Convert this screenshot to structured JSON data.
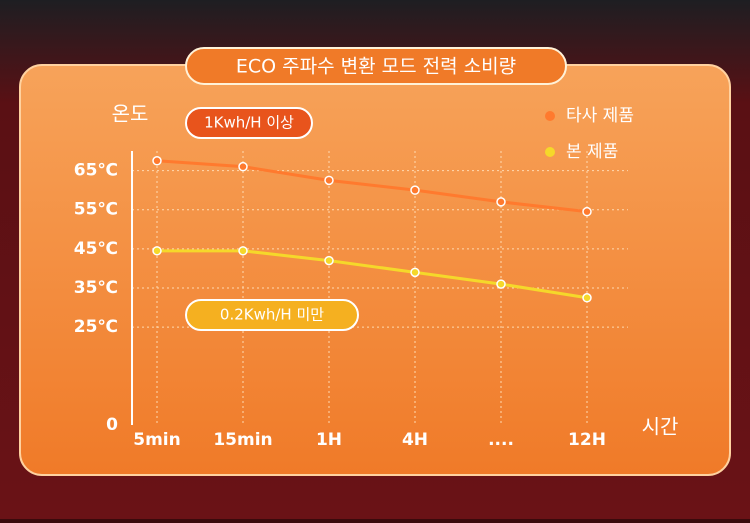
{
  "chart_data": {
    "type": "line",
    "title": "ECO 주파수 변환 모드 전력 소비량",
    "y_label": "온도",
    "x_label": "시간",
    "categories": [
      "5min",
      "15min",
      "1H",
      "4H",
      "....",
      "12H"
    ],
    "series": [
      {
        "name": "타사 제품",
        "color": "#ff7a2e",
        "values": [
          67.5,
          66,
          62.5,
          60,
          57,
          54.5
        ]
      },
      {
        "name": "본 제품",
        "color": "#f5d82a",
        "values": [
          44.5,
          44.5,
          42,
          39,
          36,
          32.5
        ]
      }
    ],
    "annotations": [
      "1Kwh/H 이상",
      "0.2Kwh/H 미만"
    ],
    "ylim": [
      0,
      70
    ],
    "yticks": [
      0,
      {
        "value": 25,
        "label": "25℃"
      },
      {
        "value": 35,
        "label": "35℃"
      },
      {
        "value": 45,
        "label": "45℃"
      },
      {
        "value": 55,
        "label": "55℃"
      },
      {
        "value": 65,
        "label": "65℃"
      }
    ],
    "grid": true,
    "legend": "top-right"
  }
}
